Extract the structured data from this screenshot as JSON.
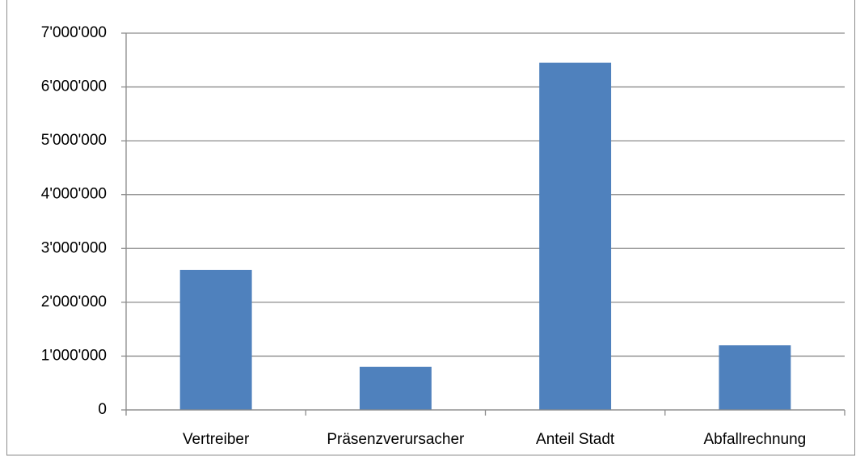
{
  "chart_data": {
    "type": "bar",
    "categories": [
      "Vertreiber",
      "Präsenzverursacher",
      "Anteil Stadt",
      "Abfallrechnung"
    ],
    "values": [
      2600000,
      800000,
      6450000,
      1200000
    ],
    "color": "#4f81bd",
    "ylim": [
      0,
      7000000
    ],
    "yticks": [
      0,
      {
        "value": 1000000,
        "label": "1'000'000"
      },
      {
        "value": 2000000,
        "label": "2'000'000"
      },
      {
        "value": 3000000,
        "label": "3'000'000"
      },
      {
        "value": 4000000,
        "label": "4'000'000"
      },
      {
        "value": 5000000,
        "label": "5'000'000"
      },
      {
        "value": 6000000,
        "label": "6'000'000"
      },
      {
        "value": 7000000,
        "label": "7'000'000"
      }
    ],
    "grid": true
  }
}
